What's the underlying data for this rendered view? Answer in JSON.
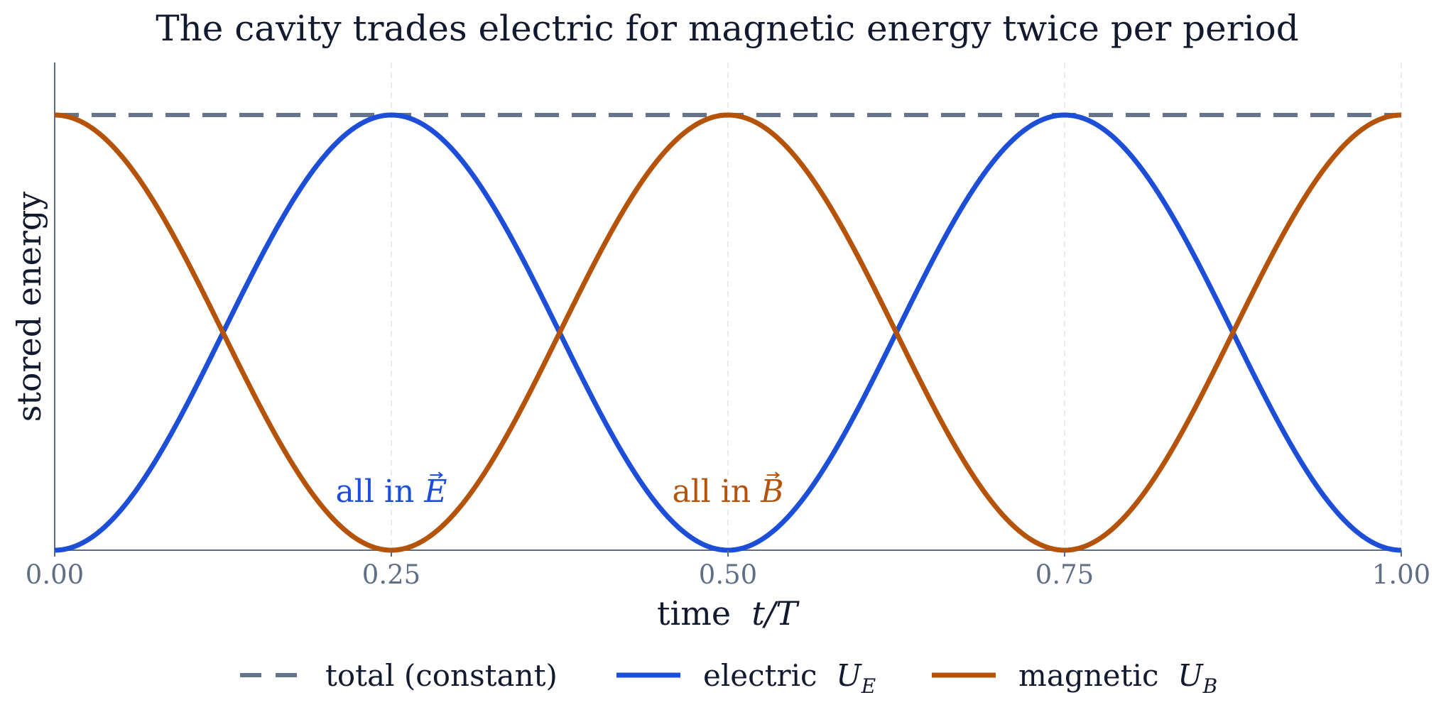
{
  "chart_data": {
    "type": "line",
    "title": "The cavity trades electric for magnetic energy twice per period",
    "xlabel": "time",
    "xlabel_math": "t/T",
    "ylabel": "stored energy",
    "xlim": [
      0,
      1
    ],
    "ylim": [
      0,
      1
    ],
    "x_ticks": [
      0,
      0.25,
      0.5,
      0.75,
      1.0
    ],
    "x_tick_labels": [
      "0.00",
      "0.25",
      "0.50",
      "0.75",
      "1.00"
    ],
    "grid": "vertical dashed at x ticks",
    "legend_position": "bottom-center",
    "series": [
      {
        "name": "total (constant)",
        "name_text": "total (constant)",
        "name_math": "",
        "style": "dashed",
        "color": "#64748b",
        "x": [
          0,
          1
        ],
        "y": [
          1,
          1
        ]
      },
      {
        "name": "electric U_E",
        "name_text": "electric",
        "name_math": "U",
        "name_math_sub": "E",
        "style": "solid",
        "color": "#1d4ed8",
        "function": "sin^2(2*pi*x)",
        "x": [
          0,
          0.125,
          0.25,
          0.375,
          0.5,
          0.625,
          0.75,
          0.875,
          1.0
        ],
        "y": [
          0,
          0.5,
          1,
          0.5,
          0,
          0.5,
          1,
          0.5,
          0
        ]
      },
      {
        "name": "magnetic U_B",
        "name_text": "magnetic",
        "name_math": "U",
        "name_math_sub": "B",
        "style": "solid",
        "color": "#b45309",
        "function": "cos^2(2*pi*x)",
        "x": [
          0,
          0.125,
          0.25,
          0.375,
          0.5,
          0.625,
          0.75,
          0.875,
          1.0
        ],
        "y": [
          1,
          0.5,
          0,
          0.5,
          1,
          0.5,
          0,
          0.5,
          1
        ]
      }
    ],
    "annotations": [
      {
        "text": "all in",
        "math": "E",
        "x": 0.25,
        "y": 0.14,
        "color": "#1d4ed8"
      },
      {
        "text": "all in",
        "math": "B",
        "x": 0.5,
        "y": 0.14,
        "color": "#b45309"
      }
    ]
  }
}
